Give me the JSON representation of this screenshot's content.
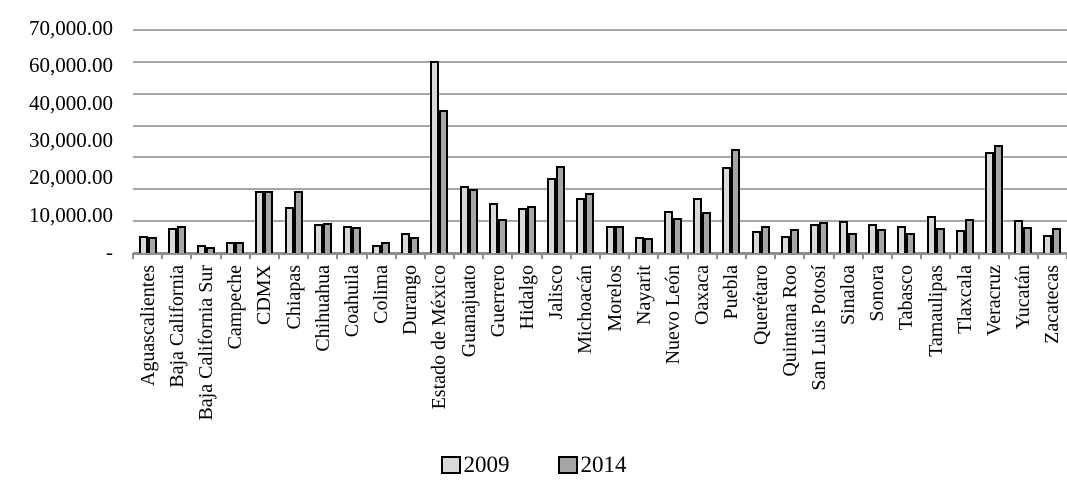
{
  "chart_data": {
    "type": "bar",
    "title": "",
    "xlabel": "",
    "ylabel": "",
    "categories": [
      "Aguascalientes",
      "Baja California",
      "Baja California Sur",
      "Campeche",
      "CDMX",
      "Chiapas",
      "Chihuahua",
      "Coahuila",
      "Colima",
      "Durango",
      "Estado de México",
      "Guanajuato",
      "Guerrero",
      "Hidalgo",
      "Jalisco",
      "Michoacán",
      "Morelos",
      "Nayarit",
      "Nuevo León",
      "Oaxaca",
      "Puebla",
      "Querétaro",
      "Quintana Roo",
      "San Luis Potosí",
      "Sinaloa",
      "Sonora",
      "Tabasco",
      "Tamaulipas",
      "Tlaxcala",
      "Veracruz",
      "Yucatán",
      "Zacatecas"
    ],
    "series": [
      {
        "name": "2009",
        "color": "#d9d9d9",
        "values": [
          5400,
          7800,
          2500,
          3500,
          19600,
          14500,
          9000,
          8400,
          2500,
          6200,
          60400,
          21000,
          15600,
          14000,
          23400,
          17200,
          8500,
          5100,
          13200,
          17200,
          27100,
          7000,
          5300,
          9000,
          10000,
          9100,
          8600,
          11700,
          7200,
          31800,
          10400,
          5500
        ]
      },
      {
        "name": "2014",
        "color": "#a6a6a6",
        "values": [
          4900,
          8600,
          1800,
          3300,
          19400,
          19600,
          9500,
          8100,
          3400,
          5000,
          45000,
          20000,
          10700,
          14800,
          27300,
          18900,
          8500,
          4800,
          10900,
          13000,
          32500,
          8500,
          7400,
          9600,
          6200,
          7400,
          6200,
          7900,
          10600,
          33900,
          8300,
          7700
        ]
      }
    ],
    "y_tick_labels": [
      "70,000.00",
      "60,000.00",
      "40,000.00",
      "30,000.00",
      "20,000.00",
      "10,000.00",
      "-"
    ],
    "ylim": [
      0,
      70000
    ],
    "grid": true,
    "gridline_count": 8,
    "legend_position": "bottom-center",
    "colors": {
      "bar_border": "#000000",
      "gridline": "#a6a6a6",
      "axis_line": "#8f8f8f",
      "text": "#000000",
      "background": "#ffffff"
    }
  }
}
